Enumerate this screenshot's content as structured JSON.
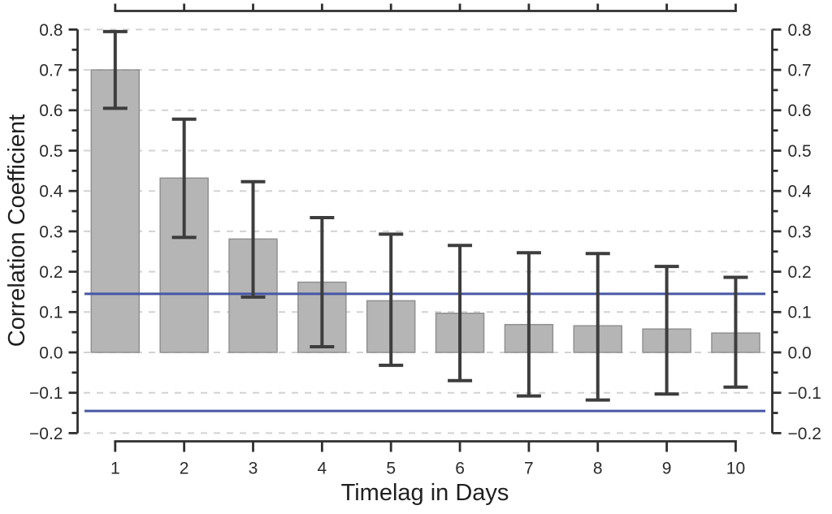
{
  "chart_data": {
    "type": "bar",
    "title": "",
    "xlabel": "Timelag in Days",
    "ylabel": "Correlation Coefficient",
    "categories": [
      "1",
      "2",
      "3",
      "4",
      "5",
      "6",
      "7",
      "8",
      "9",
      "10"
    ],
    "values": [
      0.7,
      0.432,
      0.281,
      0.174,
      0.128,
      0.097,
      0.069,
      0.066,
      0.058,
      0.048
    ],
    "error_high": [
      0.795,
      0.578,
      0.423,
      0.334,
      0.293,
      0.265,
      0.247,
      0.245,
      0.213,
      0.186
    ],
    "error_low": [
      0.605,
      0.285,
      0.137,
      0.014,
      -0.032,
      -0.07,
      -0.108,
      -0.118,
      -0.103,
      -0.086
    ],
    "significance_lines": [
      0.145,
      -0.145
    ],
    "ylim": [
      -0.2,
      0.8
    ],
    "ytick_step": 0.1,
    "yminor_tick_step": 0.05,
    "yticks": [
      {
        "value": 0.8,
        "label": "0.8"
      },
      {
        "value": 0.7,
        "label": "0.7"
      },
      {
        "value": 0.6,
        "label": "0.6"
      },
      {
        "value": 0.5,
        "label": "0.5"
      },
      {
        "value": 0.4,
        "label": "0.4"
      },
      {
        "value": 0.3,
        "label": "0.3"
      },
      {
        "value": 0.2,
        "label": "0.2"
      },
      {
        "value": 0.1,
        "label": "0.1"
      },
      {
        "value": 0.0,
        "label": "0.0"
      },
      {
        "value": -0.1,
        "label": "−0.1"
      },
      {
        "value": -0.2,
        "label": "−0.2"
      }
    ],
    "grid": {
      "horizontal": true,
      "style": "dashed"
    },
    "axes": {
      "left": true,
      "right": true,
      "top": true,
      "bottom": true
    },
    "legend": {
      "visible": false
    },
    "colors": {
      "bar_fill": "#b5b5b5",
      "bar_border": "#909090",
      "error_bar": "#3d3d3d",
      "significance_line": "#4757a6",
      "grid_line": "#d2d2d2",
      "axis": "#2f2f2f",
      "text": "#2b2b2b",
      "background": "#ffffff"
    }
  }
}
